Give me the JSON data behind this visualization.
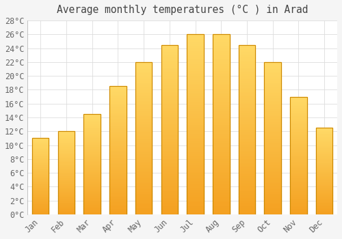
{
  "title": "Average monthly temperatures (°C ) in Arad",
  "months": [
    "Jan",
    "Feb",
    "Mar",
    "Apr",
    "May",
    "Jun",
    "Jul",
    "Aug",
    "Sep",
    "Oct",
    "Nov",
    "Dec"
  ],
  "temperatures": [
    11,
    12,
    14.5,
    18.5,
    22,
    24.5,
    26,
    26,
    24.5,
    22,
    17,
    12.5
  ],
  "bar_color_top": "#FFD966",
  "bar_color_bottom": "#F4A020",
  "bar_edge_color": "#CC8800",
  "background_color": "#F5F5F5",
  "plot_bg_color": "#FFFFFF",
  "grid_color": "#DDDDDD",
  "ylim": [
    0,
    28
  ],
  "yticks": [
    0,
    2,
    4,
    6,
    8,
    10,
    12,
    14,
    16,
    18,
    20,
    22,
    24,
    26,
    28
  ],
  "title_fontsize": 10.5,
  "tick_fontsize": 8.5,
  "title_color": "#444444",
  "tick_color": "#666666"
}
